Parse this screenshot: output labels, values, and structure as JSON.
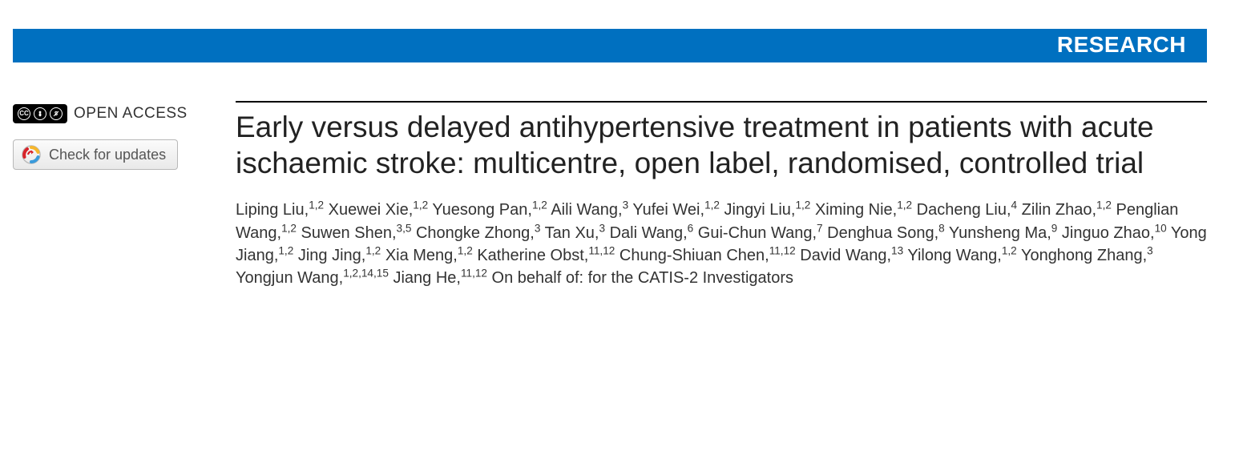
{
  "banner": {
    "label": "RESEARCH",
    "bg_color": "#0070c0",
    "text_color": "#ffffff"
  },
  "sidebar": {
    "open_access_label": "OPEN ACCESS",
    "cc_text": "CC",
    "check_updates_label": "Check for updates"
  },
  "article": {
    "title": "Early versus delayed antihypertensive treatment in patients with acute ischaemic stroke: multicentre, open label, randomised, controlled trial",
    "authors": [
      {
        "name": "Liping Liu",
        "affil": "1,2"
      },
      {
        "name": "Xuewei Xie",
        "affil": "1,2"
      },
      {
        "name": "Yuesong Pan",
        "affil": "1,2"
      },
      {
        "name": "Aili Wang",
        "affil": "3"
      },
      {
        "name": "Yufei Wei",
        "affil": "1,2"
      },
      {
        "name": "Jingyi Liu",
        "affil": "1,2"
      },
      {
        "name": "Ximing Nie",
        "affil": "1,2"
      },
      {
        "name": "Dacheng Liu",
        "affil": "4"
      },
      {
        "name": "Zilin Zhao",
        "affil": "1,2"
      },
      {
        "name": "Penglian Wang",
        "affil": "1,2"
      },
      {
        "name": "Suwen Shen",
        "affil": "3,5"
      },
      {
        "name": "Chongke Zhong",
        "affil": "3"
      },
      {
        "name": "Tan Xu",
        "affil": "3"
      },
      {
        "name": "Dali Wang",
        "affil": "6"
      },
      {
        "name": "Gui-Chun Wang",
        "affil": "7"
      },
      {
        "name": "Denghua Song",
        "affil": "8"
      },
      {
        "name": "Yunsheng Ma",
        "affil": "9"
      },
      {
        "name": "Jinguo Zhao",
        "affil": "10"
      },
      {
        "name": "Yong Jiang",
        "affil": "1,2"
      },
      {
        "name": "Jing Jing",
        "affil": "1,2"
      },
      {
        "name": "Xia Meng",
        "affil": "1,2"
      },
      {
        "name": "Katherine Obst",
        "affil": "11,12"
      },
      {
        "name": "Chung-Shiuan Chen",
        "affil": "11,12"
      },
      {
        "name": "David Wang",
        "affil": "13"
      },
      {
        "name": "Yilong Wang",
        "affil": "1,2"
      },
      {
        "name": "Yonghong Zhang",
        "affil": "3"
      },
      {
        "name": "Yongjun Wang",
        "affil": "1,2,14,15"
      },
      {
        "name": "Jiang He",
        "affil": "11,12"
      }
    ],
    "on_behalf_of": "On behalf of: for the CATIS-2 Investigators"
  }
}
